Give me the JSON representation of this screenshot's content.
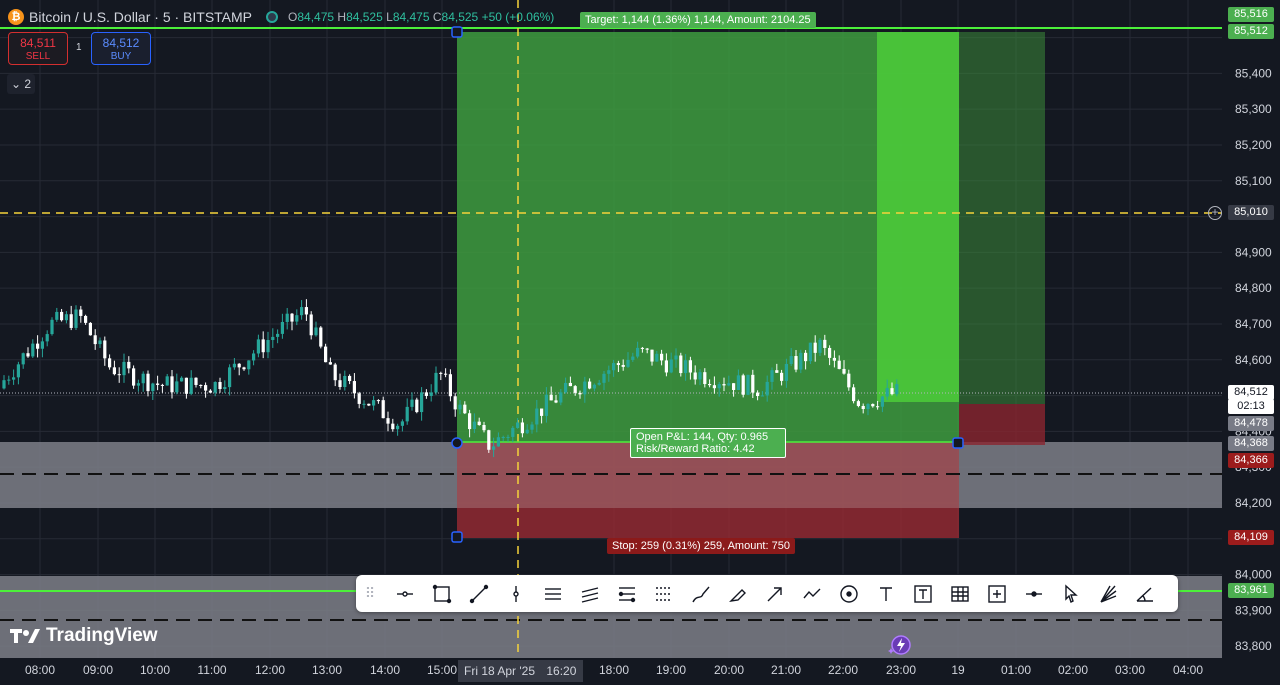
{
  "header": {
    "symbol_title": "Bitcoin / U.S. Dollar · 5 · BITSTAMP",
    "o_key": "O",
    "o_val": "84,475",
    "h_key": "H",
    "h_val": "84,525",
    "l_key": "L",
    "l_val": "84,475",
    "c_key": "C",
    "c_val": "84,525",
    "change": "+50 (+0.06%)",
    "btc_glyph": "₿"
  },
  "trade": {
    "sell_price": "84,511",
    "sell_label": "SELL",
    "buy_price": "84,512",
    "buy_label": "BUY",
    "quantity": "1",
    "collapse_label": "⌄ 2"
  },
  "position": {
    "target_label": "Target: 1,144 (1.36%) 1,144, Amount: 2104.25",
    "stop_label": "Stop: 259 (0.31%) 259, Amount: 750",
    "pnl_line1": "Open P&L: 144, Qty: 0.965",
    "pnl_line2": "Risk/Reward Ratio: 4.42"
  },
  "price_axis": {
    "ticks": [
      "85,400",
      "85,300",
      "85,200",
      "85,100",
      "84,900",
      "84,800",
      "84,700",
      "84,600",
      "84,400",
      "84,300",
      "84,200",
      "84,000",
      "83,900",
      "83,800"
    ],
    "tags": [
      {
        "text": "85,516",
        "color": "#4caf50"
      },
      {
        "text": "85,512",
        "color": "#4caf50"
      },
      {
        "text": "85,010",
        "color": "#363a45"
      },
      {
        "text": "84,512",
        "color": "#ffffff"
      },
      {
        "text": "02:13",
        "color": "#ffffff"
      },
      {
        "text": "84,478",
        "color": "#787b86"
      },
      {
        "text": "84,368",
        "color": "#787b86"
      },
      {
        "text": "84,366",
        "color": "#9c1c1c"
      },
      {
        "text": "84,109",
        "color": "#9c1c1c"
      },
      {
        "text": "83,961",
        "color": "#4caf50"
      }
    ]
  },
  "time_axis": {
    "labels": [
      "08:00",
      "09:00",
      "10:00",
      "11:00",
      "12:00",
      "13:00",
      "14:00",
      "15:00",
      "18:00",
      "19:00",
      "20:00",
      "21:00",
      "22:00",
      "23:00",
      "19",
      "01:00",
      "02:00",
      "03:00",
      "04:00"
    ],
    "crosshair_date": "Fri 18 Apr '25",
    "crosshair_time": "16:20"
  },
  "toolbar": {
    "grip": "⠿",
    "tools": [
      "horizontal-ray",
      "rectangle",
      "trend-line",
      "vertical-line",
      "parallel-channel",
      "regression-trend",
      "fib-retracement",
      "fib-extension",
      "brush",
      "highlighter",
      "arrow",
      "path",
      "ellipse",
      "text",
      "text-box",
      "table",
      "measure",
      "cross-line",
      "cursor",
      "fib-fan",
      "angle"
    ]
  },
  "branding": {
    "logo_text": "TradingView"
  },
  "colors": {
    "up": "#26a69a",
    "down": "#ffffff",
    "profit": "#4caf50",
    "loss": "#b2343a",
    "crosshair": "#f5d33a",
    "line_green": "#4caf50"
  }
}
